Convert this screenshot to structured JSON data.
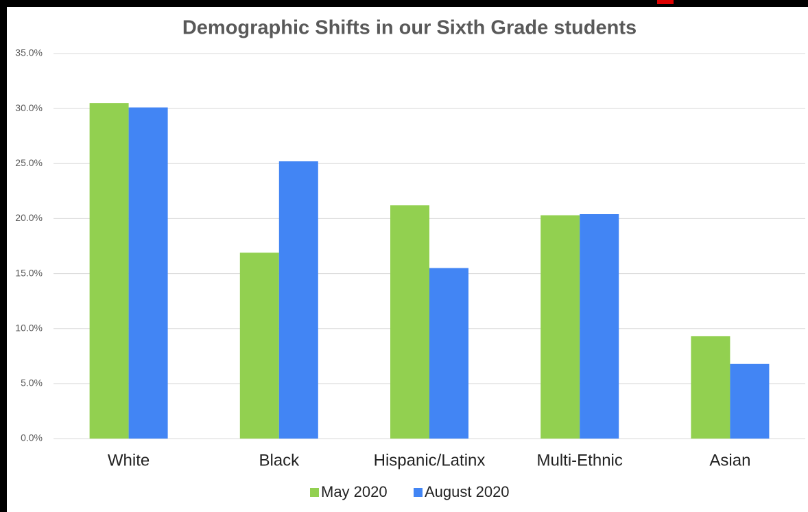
{
  "chart_data": {
    "type": "bar",
    "title": "Demographic Shifts in our Sixth Grade students",
    "categories": [
      "White",
      "Black",
      "Hispanic/Latinx",
      "Multi-Ethnic",
      "Asian"
    ],
    "series": [
      {
        "name": "May 2020",
        "color": "#92d050",
        "values": [
          30.5,
          16.9,
          21.2,
          20.3,
          9.3
        ]
      },
      {
        "name": "August 2020",
        "color": "#4285f4",
        "values": [
          30.1,
          25.2,
          15.5,
          20.4,
          6.8
        ]
      }
    ],
    "ylim": [
      0,
      35
    ],
    "yticks": [
      {
        "value": 0,
        "label": "0.0%"
      },
      {
        "value": 5,
        "label": "5.0%"
      },
      {
        "value": 10,
        "label": "10.0%"
      },
      {
        "value": 15,
        "label": "15.0%"
      },
      {
        "value": 20,
        "label": "20.0%"
      },
      {
        "value": 25,
        "label": "25.0%"
      },
      {
        "value": 30,
        "label": "30.0%"
      },
      {
        "value": 35,
        "label": "35.0%"
      }
    ],
    "grid": true,
    "legend": "bottom"
  }
}
